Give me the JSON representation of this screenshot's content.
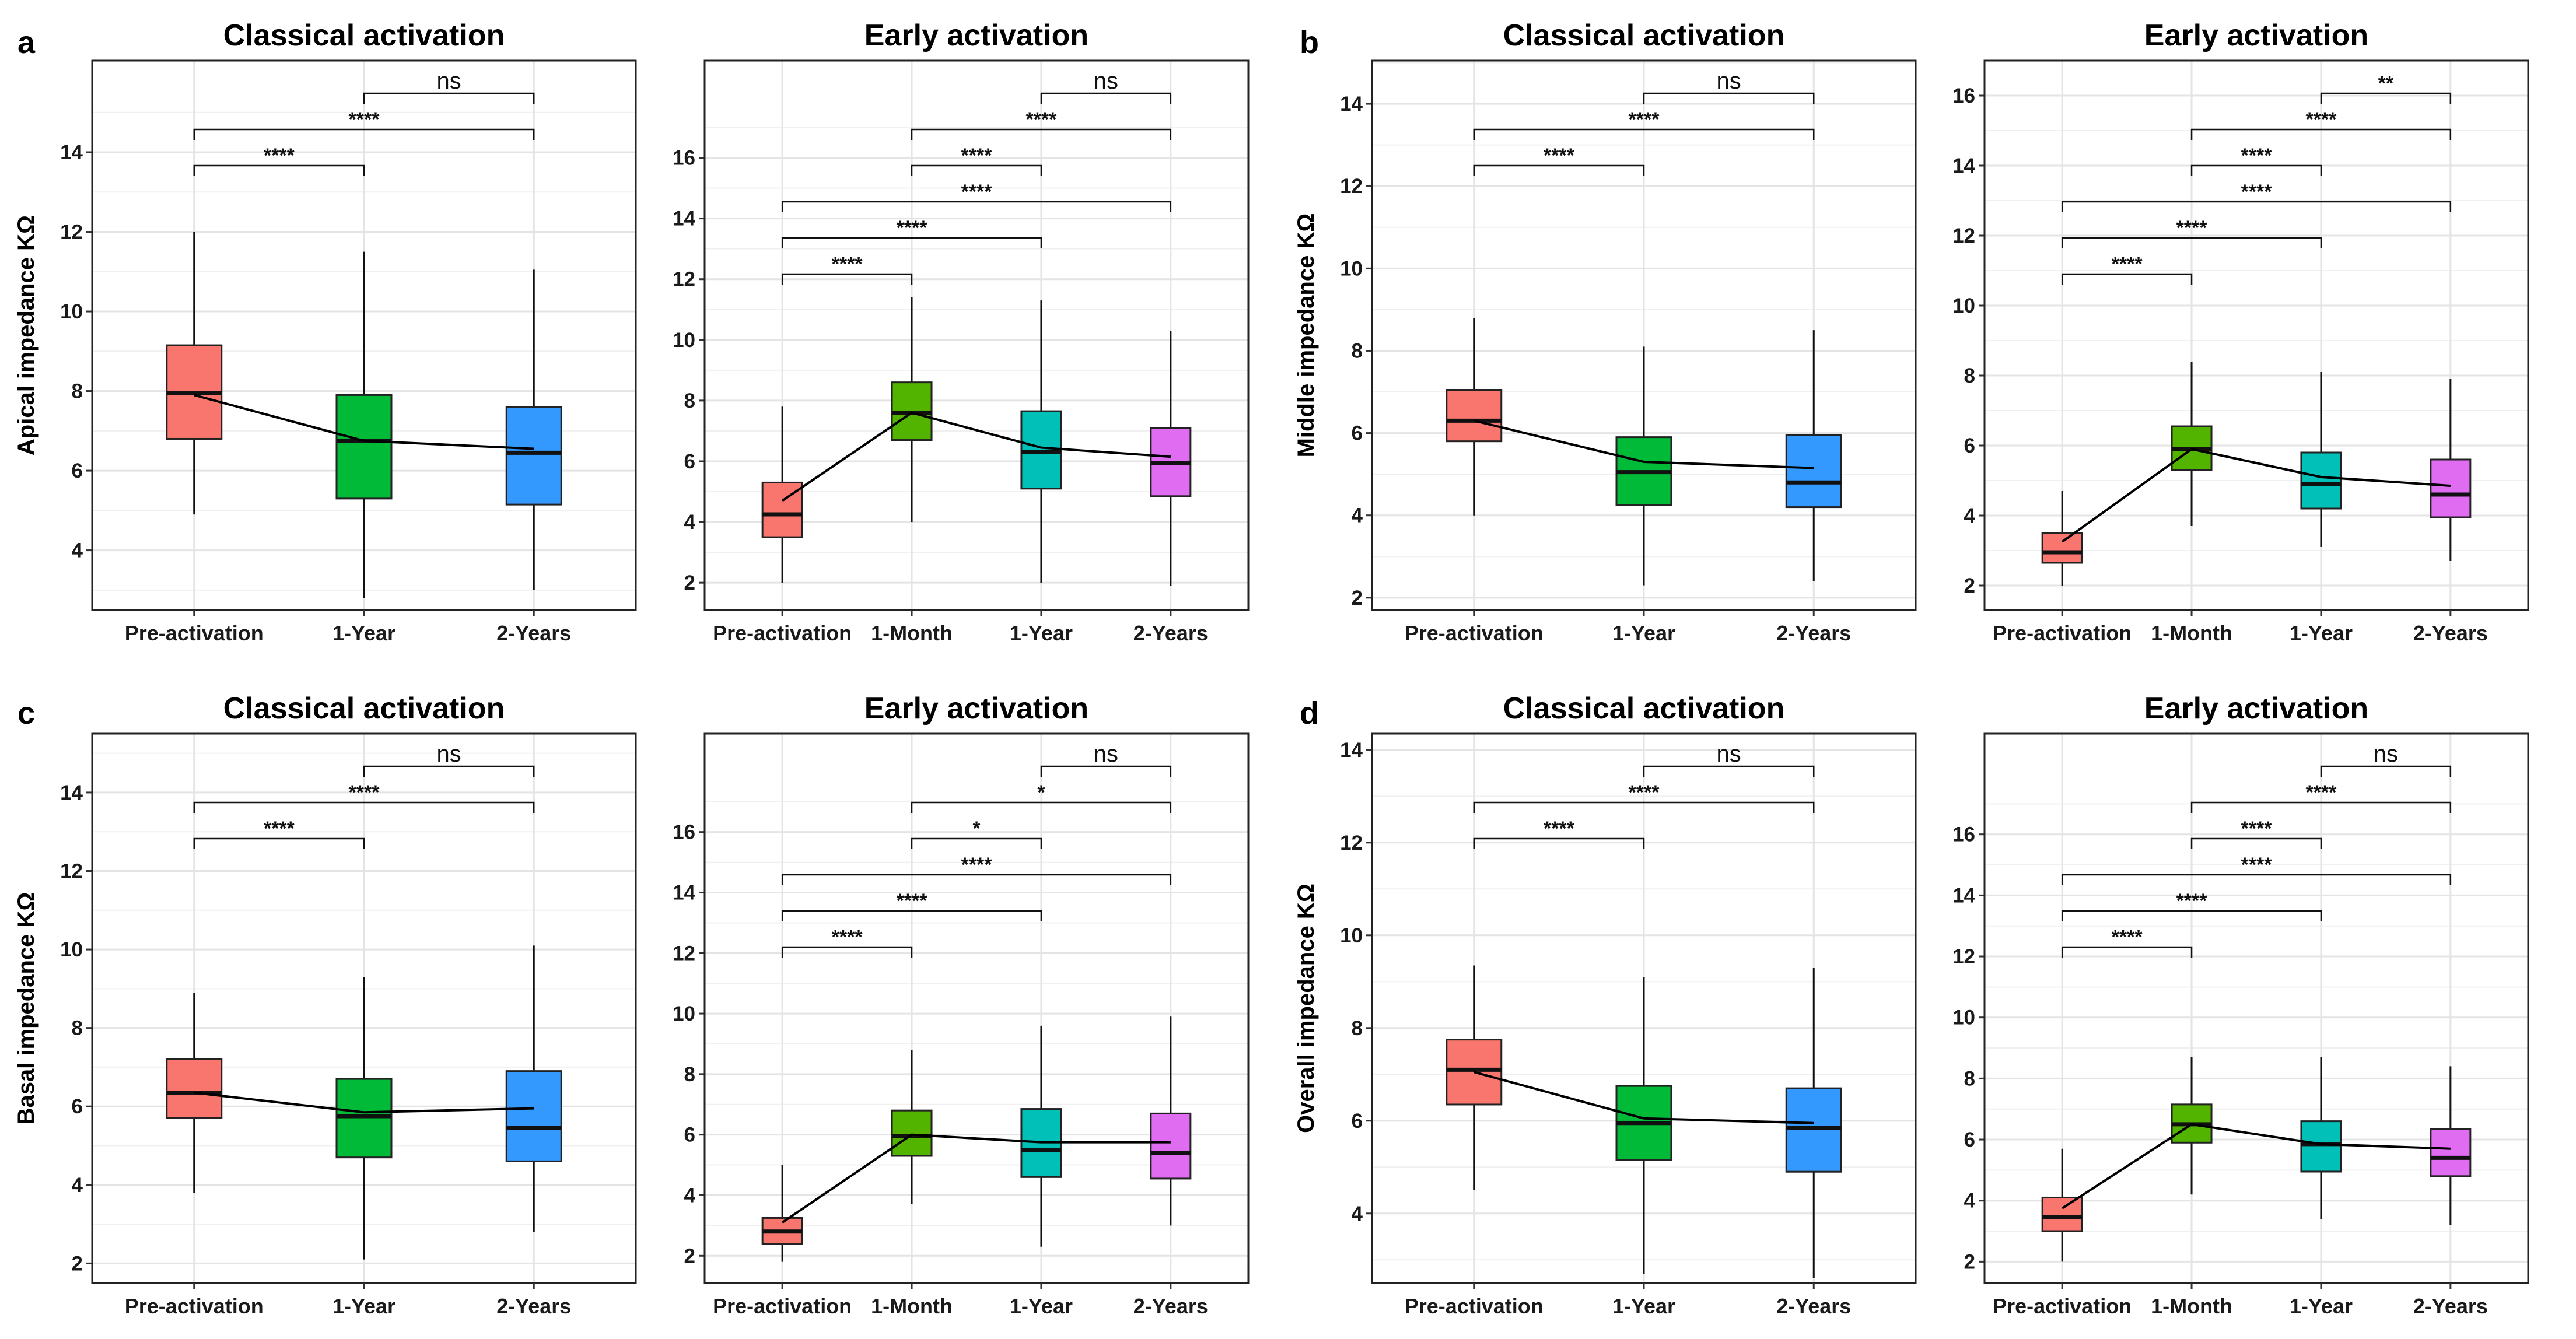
{
  "figure": {
    "panel_labels": [
      "a",
      "b",
      "c",
      "d"
    ],
    "title_classical": "Classical activation",
    "title_early": "Early activation"
  },
  "chart_data": [
    {
      "type": "box",
      "panel": "a",
      "title": "Classical activation",
      "ylabel": "Apical impedance KΩ",
      "ylim": [
        2.5,
        16.3
      ],
      "yticks": [
        4,
        6,
        8,
        10,
        12,
        14
      ],
      "categories": [
        "Pre-activation",
        "1-Year",
        "2-Years"
      ],
      "colors": [
        "#F8766D",
        "#00BA38",
        "#3399FF"
      ],
      "boxes": [
        {
          "min": 4.9,
          "q1": 6.8,
          "median": 7.95,
          "q3": 9.15,
          "max": 12.0
        },
        {
          "min": 2.8,
          "q1": 5.3,
          "median": 6.75,
          "q3": 7.9,
          "max": 11.5
        },
        {
          "min": 3.0,
          "q1": 5.15,
          "median": 6.45,
          "q3": 7.6,
          "max": 11.05
        }
      ],
      "means": [
        7.9,
        6.75,
        6.55
      ],
      "comparisons": [
        {
          "from": 0,
          "to": 1,
          "label": "****"
        },
        {
          "from": 0,
          "to": 2,
          "label": "****"
        },
        {
          "from": 1,
          "to": 2,
          "label": "ns"
        }
      ]
    },
    {
      "type": "box",
      "panel": "a",
      "title": "Early activation",
      "ylabel": "",
      "ylim": [
        1.1,
        19.2
      ],
      "yticks": [
        2,
        4,
        6,
        8,
        10,
        12,
        14,
        16
      ],
      "categories": [
        "Pre-activation",
        "1-Month",
        "1-Year",
        "2-Years"
      ],
      "colors": [
        "#F8766D",
        "#53B400",
        "#00C0B8",
        "#E06CF2"
      ],
      "boxes": [
        {
          "min": 2.0,
          "q1": 3.5,
          "median": 4.25,
          "q3": 5.3,
          "max": 7.8
        },
        {
          "min": 4.0,
          "q1": 6.7,
          "median": 7.6,
          "q3": 8.6,
          "max": 11.4
        },
        {
          "min": 2.0,
          "q1": 5.1,
          "median": 6.3,
          "q3": 7.65,
          "max": 11.3
        },
        {
          "min": 1.9,
          "q1": 4.85,
          "median": 5.95,
          "q3": 7.1,
          "max": 10.3
        }
      ],
      "means": [
        4.7,
        7.6,
        6.45,
        6.15
      ],
      "comparisons": [
        {
          "from": 0,
          "to": 1,
          "label": "****"
        },
        {
          "from": 0,
          "to": 2,
          "label": "****"
        },
        {
          "from": 0,
          "to": 3,
          "label": "****"
        },
        {
          "from": 1,
          "to": 2,
          "label": "****"
        },
        {
          "from": 1,
          "to": 3,
          "label": "****"
        },
        {
          "from": 2,
          "to": 3,
          "label": "ns"
        }
      ]
    },
    {
      "type": "box",
      "panel": "b",
      "title": "Classical activation",
      "ylabel": "Middle impedance KΩ",
      "ylim": [
        1.7,
        15.05
      ],
      "yticks": [
        2,
        4,
        6,
        8,
        10,
        12,
        14
      ],
      "categories": [
        "Pre-activation",
        "1-Year",
        "2-Years"
      ],
      "colors": [
        "#F8766D",
        "#00BA38",
        "#3399FF"
      ],
      "boxes": [
        {
          "min": 4.0,
          "q1": 5.8,
          "median": 6.3,
          "q3": 7.05,
          "max": 8.8
        },
        {
          "min": 2.3,
          "q1": 4.25,
          "median": 5.05,
          "q3": 5.9,
          "max": 8.1
        },
        {
          "min": 2.4,
          "q1": 4.2,
          "median": 4.8,
          "q3": 5.95,
          "max": 8.5
        }
      ],
      "means": [
        6.3,
        5.3,
        5.15
      ],
      "comparisons": [
        {
          "from": 0,
          "to": 1,
          "label": "****"
        },
        {
          "from": 0,
          "to": 2,
          "label": "****"
        },
        {
          "from": 1,
          "to": 2,
          "label": "ns"
        }
      ]
    },
    {
      "type": "box",
      "panel": "b",
      "title": "Early activation",
      "ylabel": "",
      "ylim": [
        1.3,
        17.0
      ],
      "yticks": [
        2,
        4,
        6,
        8,
        10,
        12,
        14,
        16
      ],
      "categories": [
        "Pre-activation",
        "1-Month",
        "1-Year",
        "2-Years"
      ],
      "colors": [
        "#F8766D",
        "#53B400",
        "#00C0B8",
        "#E06CF2"
      ],
      "boxes": [
        {
          "min": 2.0,
          "q1": 2.65,
          "median": 2.95,
          "q3": 3.5,
          "max": 4.7
        },
        {
          "min": 3.7,
          "q1": 5.3,
          "median": 5.9,
          "q3": 6.55,
          "max": 8.4
        },
        {
          "min": 3.1,
          "q1": 4.2,
          "median": 4.9,
          "q3": 5.8,
          "max": 8.1
        },
        {
          "min": 2.7,
          "q1": 3.95,
          "median": 4.6,
          "q3": 5.6,
          "max": 7.9
        }
      ],
      "means": [
        3.25,
        5.9,
        5.1,
        4.85
      ],
      "comparisons": [
        {
          "from": 0,
          "to": 1,
          "label": "****"
        },
        {
          "from": 0,
          "to": 2,
          "label": "****"
        },
        {
          "from": 0,
          "to": 3,
          "label": "****"
        },
        {
          "from": 1,
          "to": 2,
          "label": "****"
        },
        {
          "from": 1,
          "to": 3,
          "label": "****"
        },
        {
          "from": 2,
          "to": 3,
          "label": "**"
        }
      ]
    },
    {
      "type": "box",
      "panel": "c",
      "title": "Classical activation",
      "ylabel": "Basal impedance KΩ",
      "ylim": [
        1.5,
        15.5
      ],
      "yticks": [
        2,
        4,
        6,
        8,
        10,
        12,
        14
      ],
      "categories": [
        "Pre-activation",
        "1-Year",
        "2-Years"
      ],
      "colors": [
        "#F8766D",
        "#00BA38",
        "#3399FF"
      ],
      "boxes": [
        {
          "min": 3.8,
          "q1": 5.7,
          "median": 6.35,
          "q3": 7.2,
          "max": 8.9
        },
        {
          "min": 2.1,
          "q1": 4.7,
          "median": 5.75,
          "q3": 6.7,
          "max": 9.3
        },
        {
          "min": 2.8,
          "q1": 4.6,
          "median": 5.45,
          "q3": 6.9,
          "max": 10.1
        }
      ],
      "means": [
        6.35,
        5.85,
        5.95
      ],
      "comparisons": [
        {
          "from": 0,
          "to": 1,
          "label": "****"
        },
        {
          "from": 0,
          "to": 2,
          "label": "****"
        },
        {
          "from": 1,
          "to": 2,
          "label": "ns"
        }
      ]
    },
    {
      "type": "box",
      "panel": "c",
      "title": "Early activation",
      "ylabel": "",
      "ylim": [
        1.1,
        19.25
      ],
      "yticks": [
        2,
        4,
        6,
        8,
        10,
        12,
        14,
        16
      ],
      "categories": [
        "Pre-activation",
        "1-Month",
        "1-Year",
        "2-Years"
      ],
      "colors": [
        "#F8766D",
        "#53B400",
        "#00C0B8",
        "#E06CF2"
      ],
      "boxes": [
        {
          "min": 1.8,
          "q1": 2.4,
          "median": 2.8,
          "q3": 3.25,
          "max": 5.0
        },
        {
          "min": 3.7,
          "q1": 5.3,
          "median": 5.95,
          "q3": 6.8,
          "max": 8.8
        },
        {
          "min": 2.3,
          "q1": 4.6,
          "median": 5.5,
          "q3": 6.85,
          "max": 9.6
        },
        {
          "min": 3.0,
          "q1": 4.55,
          "median": 5.4,
          "q3": 6.7,
          "max": 9.9
        }
      ],
      "means": [
        3.1,
        6.0,
        5.75,
        5.75
      ],
      "comparisons": [
        {
          "from": 0,
          "to": 1,
          "label": "****"
        },
        {
          "from": 0,
          "to": 2,
          "label": "****"
        },
        {
          "from": 0,
          "to": 3,
          "label": "****"
        },
        {
          "from": 1,
          "to": 2,
          "label": "*"
        },
        {
          "from": 1,
          "to": 3,
          "label": "*"
        },
        {
          "from": 2,
          "to": 3,
          "label": "ns"
        }
      ]
    },
    {
      "type": "box",
      "panel": "d",
      "title": "Classical activation",
      "ylabel": "Overall impedance KΩ",
      "ylim": [
        2.5,
        14.35
      ],
      "yticks": [
        4,
        6,
        8,
        10,
        12,
        14
      ],
      "categories": [
        "Pre-activation",
        "1-Year",
        "2-Years"
      ],
      "colors": [
        "#F8766D",
        "#00BA38",
        "#3399FF"
      ],
      "boxes": [
        {
          "min": 4.5,
          "q1": 6.35,
          "median": 7.1,
          "q3": 7.75,
          "max": 9.35
        },
        {
          "min": 2.7,
          "q1": 5.15,
          "median": 5.95,
          "q3": 6.75,
          "max": 9.1
        },
        {
          "min": 2.6,
          "q1": 4.9,
          "median": 5.85,
          "q3": 6.7,
          "max": 9.3
        }
      ],
      "means": [
        7.05,
        6.05,
        5.95
      ],
      "comparisons": [
        {
          "from": 0,
          "to": 1,
          "label": "****"
        },
        {
          "from": 0,
          "to": 2,
          "label": "****"
        },
        {
          "from": 1,
          "to": 2,
          "label": "ns"
        }
      ]
    },
    {
      "type": "box",
      "panel": "d",
      "title": "Early activation",
      "ylabel": "",
      "ylim": [
        1.3,
        19.3
      ],
      "yticks": [
        2,
        4,
        6,
        8,
        10,
        12,
        14,
        16
      ],
      "categories": [
        "Pre-activation",
        "1-Month",
        "1-Year",
        "2-Years"
      ],
      "colors": [
        "#F8766D",
        "#53B400",
        "#00C0B8",
        "#E06CF2"
      ],
      "boxes": [
        {
          "min": 2.0,
          "q1": 3.0,
          "median": 3.45,
          "q3": 4.1,
          "max": 5.7
        },
        {
          "min": 4.2,
          "q1": 5.9,
          "median": 6.5,
          "q3": 7.15,
          "max": 8.7
        },
        {
          "min": 3.4,
          "q1": 4.95,
          "median": 5.85,
          "q3": 6.6,
          "max": 8.7
        },
        {
          "min": 3.2,
          "q1": 4.8,
          "median": 5.4,
          "q3": 6.35,
          "max": 8.4
        }
      ],
      "means": [
        3.75,
        6.5,
        5.85,
        5.7
      ],
      "comparisons": [
        {
          "from": 0,
          "to": 1,
          "label": "****"
        },
        {
          "from": 0,
          "to": 2,
          "label": "****"
        },
        {
          "from": 0,
          "to": 3,
          "label": "****"
        },
        {
          "from": 1,
          "to": 2,
          "label": "****"
        },
        {
          "from": 1,
          "to": 3,
          "label": "****"
        },
        {
          "from": 2,
          "to": 3,
          "label": "ns"
        }
      ]
    }
  ]
}
